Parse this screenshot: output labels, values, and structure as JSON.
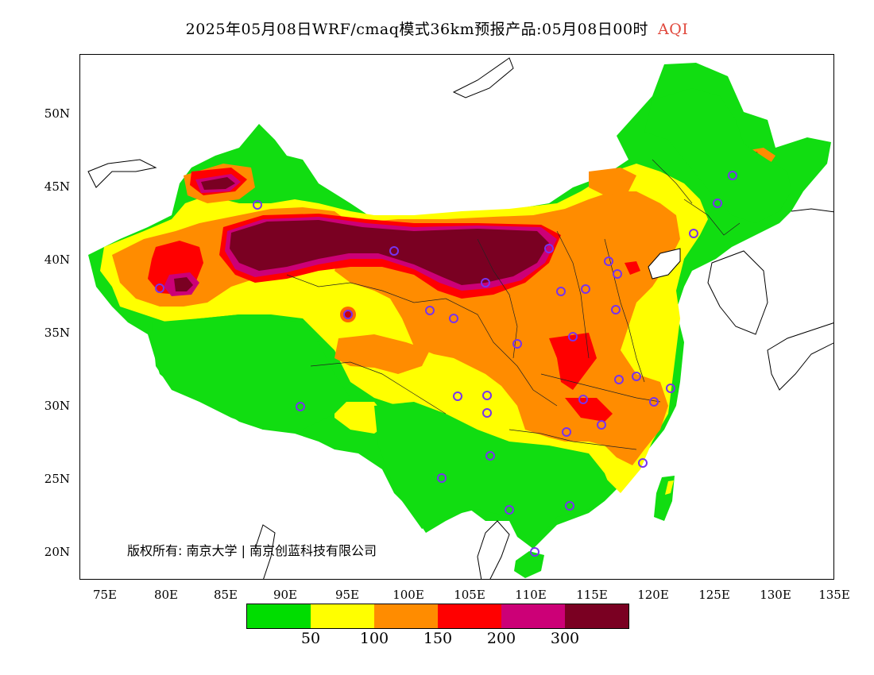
{
  "title": {
    "text": "2025年05月08日WRF/cmaq模式36km预报产品:05月08日00时",
    "variable": "AQI",
    "variable_color": "#e0483c"
  },
  "lat_labels": [
    "50N",
    "45N",
    "40N",
    "35N",
    "30N",
    "25N",
    "20N"
  ],
  "lon_labels": [
    "75E",
    "80E",
    "85E",
    "90E",
    "95E",
    "100E",
    "105E",
    "110E",
    "115E",
    "120E",
    "125E",
    "130E",
    "135E"
  ],
  "copyright": "版权所有: 南京大学 | 南京创蓝科技有限公司",
  "legend": {
    "colors": [
      "#00dd00",
      "#ffff00",
      "#ff8c00",
      "#ff0000",
      "#cc0077",
      "#7a0022"
    ],
    "labels": [
      "50",
      "100",
      "150",
      "200",
      "300"
    ]
  },
  "palette": {
    "good": "#11dd11",
    "moderate": "#ffff00",
    "usg": "#ff8c00",
    "unhealthy": "#ff0000",
    "very_unhealthy": "#cc0077",
    "hazardous": "#7a0022",
    "station_marker": "#7733ee"
  }
}
